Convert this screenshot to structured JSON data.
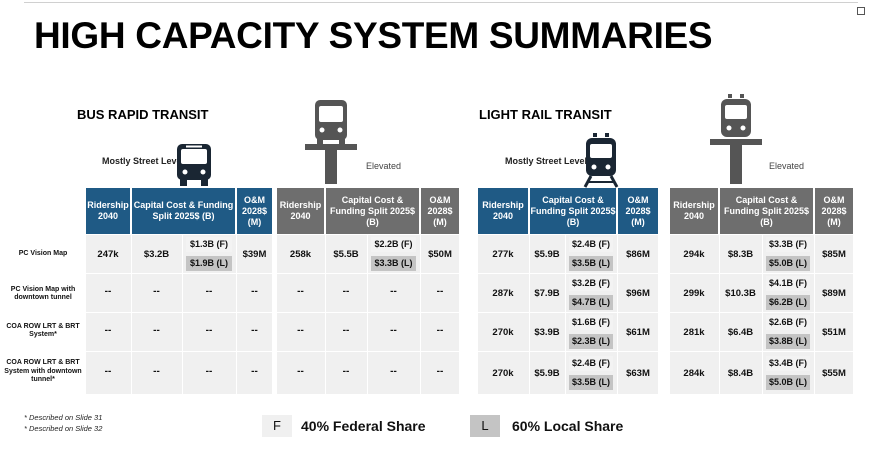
{
  "title": "HIGH CAPACITY SYSTEM SUMMARIES",
  "sections": {
    "brt": "BUS RAPID TRANSIT",
    "lrt": "LIGHT RAIL TRANSIT"
  },
  "mode_labels": {
    "street": "Mostly Street Level",
    "elevated": "Elevated"
  },
  "headers": {
    "ridership": "Ridership 2040",
    "capital": "Capital Cost & Funding Split 2025$ (B)",
    "om": "O&M 2028$ (M)"
  },
  "row_labels": [
    "PC Vision Map",
    "PC Vision Map with downtown tunnel",
    "COA ROW LRT & BRT System*",
    "COA ROW LRT & BRT System with downtown tunnel*"
  ],
  "blocks": [
    {
      "name": "brt-street",
      "rows": [
        {
          "ridership": "247k",
          "total": "$3.2B",
          "federal": "$1.3B (F)",
          "local": "$1.9B (L)",
          "om": "$39M"
        },
        {
          "dash": "--"
        },
        {
          "dash": "--"
        },
        {
          "dash": "--"
        }
      ]
    },
    {
      "name": "brt-elevated",
      "rows": [
        {
          "ridership": "258k",
          "total": "$5.5B",
          "federal": "$2.2B (F)",
          "local": "$3.3B (L)",
          "om": "$50M"
        },
        {
          "dash": "--"
        },
        {
          "dash": "--"
        },
        {
          "dash": "--"
        }
      ]
    },
    {
      "name": "lrt-street",
      "rows": [
        {
          "ridership": "277k",
          "total": "$5.9B",
          "federal": "$2.4B (F)",
          "local": "$3.5B (L)",
          "om": "$86M"
        },
        {
          "ridership": "287k",
          "total": "$7.9B",
          "federal": "$3.2B (F)",
          "local": "$4.7B (L)",
          "om": "$96M"
        },
        {
          "ridership": "270k",
          "total": "$3.9B",
          "federal": "$1.6B (F)",
          "local": "$2.3B (L)",
          "om": "$61M"
        },
        {
          "ridership": "270k",
          "total": "$5.9B",
          "federal": "$2.4B (F)",
          "local": "$3.5B (L)",
          "om": "$63M"
        }
      ]
    },
    {
      "name": "lrt-elevated",
      "rows": [
        {
          "ridership": "294k",
          "total": "$8.3B",
          "federal": "$3.3B (F)",
          "local": "$5.0B (L)",
          "om": "$85M"
        },
        {
          "ridership": "299k",
          "total": "$10.3B",
          "federal": "$4.1B (F)",
          "local": "$6.2B (L)",
          "om": "$89M"
        },
        {
          "ridership": "281k",
          "total": "$6.4B",
          "federal": "$2.6B (F)",
          "local": "$3.8B (L)",
          "om": "$51M"
        },
        {
          "ridership": "284k",
          "total": "$8.4B",
          "federal": "$3.4B (F)",
          "local": "$5.0B (L)",
          "om": "$55M"
        }
      ]
    }
  ],
  "footnotes": [
    "* Described on Slide 31",
    "* Described on Slide 32"
  ],
  "legend": [
    {
      "letter": "F",
      "text": "40% Federal Share"
    },
    {
      "letter": "L",
      "text": "60% Local Share"
    }
  ],
  "colors": {
    "header_blue": "#1f5a85",
    "header_gray": "#6e6e6e",
    "local_chip": "#c4c4c4",
    "federal_chip": "#f3f3f3"
  },
  "icons": [
    "bus-front-icon",
    "elevated-bus-icon",
    "train-front-icon",
    "elevated-train-icon"
  ]
}
